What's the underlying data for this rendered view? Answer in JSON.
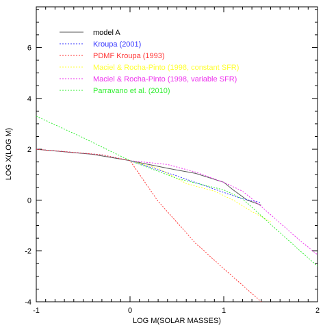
{
  "chart_data": {
    "type": "line",
    "title": "",
    "xlabel": "LOG M(SOLAR MASSES)",
    "ylabel": "LOG X(LOG M)",
    "xlim": [
      -1,
      2
    ],
    "ylim": [
      -4,
      7.6
    ],
    "xticks": [
      {
        "value": -1,
        "label": "-1"
      },
      {
        "value": 0,
        "label": "0"
      },
      {
        "value": 1,
        "label": "1"
      },
      {
        "value": 2,
        "label": "2"
      }
    ],
    "yticks": [
      {
        "value": -4,
        "label": "-4"
      },
      {
        "value": -2,
        "label": "-2"
      },
      {
        "value": 0,
        "label": "0"
      },
      {
        "value": 2,
        "label": "2"
      },
      {
        "value": 4,
        "label": "4"
      },
      {
        "value": 6,
        "label": "6"
      }
    ],
    "minor_x_step": 0.1,
    "minor_y_step": 0.5,
    "grid": false,
    "legend_position": "top-left",
    "series": [
      {
        "name": "model A",
        "color": "#555555",
        "dash": "solid",
        "x": [
          -1.0,
          -0.4,
          0.0,
          0.4,
          0.7,
          1.0,
          1.1,
          1.25,
          1.4
        ],
        "y": [
          2.0,
          1.8,
          1.55,
          1.25,
          1.05,
          0.7,
          0.4,
          0.0,
          -0.2
        ]
      },
      {
        "name": "Kroupa (2001)",
        "color": "#3333ff",
        "dash": "dotted",
        "x": [
          -1.0,
          -0.3,
          0.0,
          0.5,
          1.0,
          1.2,
          1.4
        ],
        "y": [
          2.0,
          1.78,
          1.55,
          0.95,
          0.3,
          0.05,
          -0.1
        ]
      },
      {
        "name": "PDMF Kroupa (1993)",
        "color": "#ff3333",
        "dash": "dotted",
        "x": [
          -1.0,
          -0.3,
          0.0,
          0.3,
          0.7,
          1.0,
          1.4
        ],
        "y": [
          2.0,
          1.78,
          1.55,
          -0.05,
          -1.7,
          -2.7,
          -4.0
        ]
      },
      {
        "name": "Maciel & Rocha-Pinto (1998, constant SFR)",
        "color": "#ffff33",
        "dash": "dotted",
        "x": [
          0.0,
          0.3,
          0.6,
          0.9,
          1.1,
          1.3,
          1.5
        ],
        "y": [
          1.55,
          1.25,
          0.65,
          0.35,
          0.0,
          -0.45,
          -0.85
        ]
      },
      {
        "name": "Maciel & Rocha-Pinto (1998, variable SFR)",
        "color": "#ee33ee",
        "dash": "dotted",
        "x": [
          0.0,
          0.4,
          0.7,
          1.0,
          1.2,
          1.4,
          1.6,
          1.8,
          2.0
        ],
        "y": [
          1.55,
          1.4,
          1.1,
          0.7,
          0.35,
          -0.25,
          -0.9,
          -1.55,
          -2.15
        ]
      },
      {
        "name": "Parravano et al. (2010)",
        "color": "#33ee33",
        "dash": "dotted",
        "x": [
          -1.0,
          -0.5,
          0.0,
          0.5,
          1.0,
          1.2,
          1.5,
          1.8,
          2.0
        ],
        "y": [
          3.3,
          2.45,
          1.55,
          0.85,
          0.4,
          0.05,
          -0.95,
          -1.95,
          -2.6
        ]
      }
    ]
  }
}
